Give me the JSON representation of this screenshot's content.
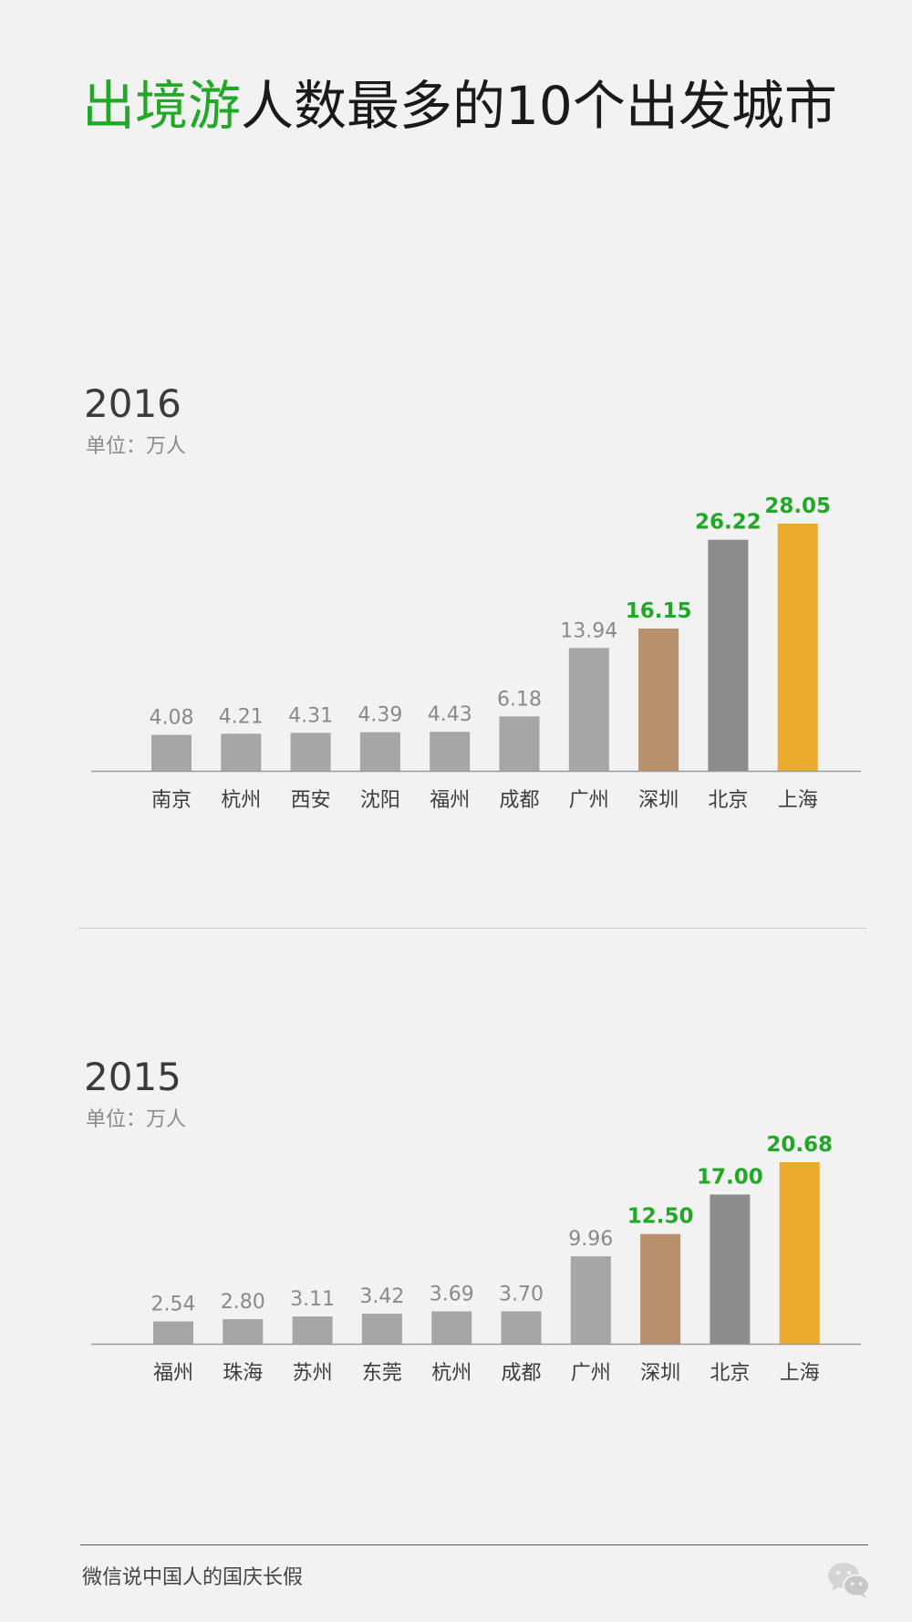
{
  "header": {
    "title_highlight": "出境游",
    "title_rest": "人数最多的10个出发城市"
  },
  "colors": {
    "highlight_green": "#22a827",
    "bar_default": "#a6a6a6",
    "bar_third": "#b8906c",
    "bar_second": "#8c8c8c",
    "bar_first": "#eaab2c",
    "label_default": "#8a8a8a"
  },
  "chart_data": [
    {
      "type": "bar",
      "title": "2016",
      "subtitle": "单位：万人",
      "categories": [
        "南京",
        "杭州",
        "西安",
        "沈阳",
        "福州",
        "成都",
        "广州",
        "深圳",
        "北京",
        "上海"
      ],
      "values": [
        4.08,
        4.21,
        4.31,
        4.39,
        4.43,
        6.18,
        13.94,
        16.15,
        26.22,
        28.05
      ],
      "value_labels": [
        "4.08",
        "4.21",
        "4.31",
        "4.39",
        "4.43",
        "6.18",
        "13.94",
        "16.15",
        "26.22",
        "28.05"
      ],
      "bar_colors": [
        "#a6a6a6",
        "#a6a6a6",
        "#a6a6a6",
        "#a6a6a6",
        "#a6a6a6",
        "#a6a6a6",
        "#a6a6a6",
        "#b8906c",
        "#8c8c8c",
        "#eaab2c"
      ],
      "label_colors": [
        "#8a8a8a",
        "#8a8a8a",
        "#8a8a8a",
        "#8a8a8a",
        "#8a8a8a",
        "#8a8a8a",
        "#8a8a8a",
        "#22a827",
        "#22a827",
        "#22a827"
      ],
      "ylim": [
        0,
        28.05
      ],
      "grid": false
    },
    {
      "type": "bar",
      "title": "2015",
      "subtitle": "单位：万人",
      "categories": [
        "福州",
        "珠海",
        "苏州",
        "东莞",
        "杭州",
        "成都",
        "广州",
        "深圳",
        "北京",
        "上海"
      ],
      "values": [
        2.54,
        2.8,
        3.11,
        3.42,
        3.69,
        3.7,
        9.96,
        12.5,
        17.0,
        20.68
      ],
      "value_labels": [
        "2.54",
        "2.80",
        "3.11",
        "3.42",
        "3.69",
        "3.70",
        "9.96",
        "12.50",
        "17.00",
        "20.68"
      ],
      "bar_colors": [
        "#a6a6a6",
        "#a6a6a6",
        "#a6a6a6",
        "#a6a6a6",
        "#a6a6a6",
        "#a6a6a6",
        "#a6a6a6",
        "#b8906c",
        "#8c8c8c",
        "#eaab2c"
      ],
      "label_colors": [
        "#8a8a8a",
        "#8a8a8a",
        "#8a8a8a",
        "#8a8a8a",
        "#8a8a8a",
        "#8a8a8a",
        "#8a8a8a",
        "#22a827",
        "#22a827",
        "#22a827"
      ],
      "ylim": [
        0,
        20.68
      ],
      "grid": false
    }
  ],
  "footer": {
    "text": "微信说中国人的国庆长假",
    "logo_icon": "wechat-icon"
  }
}
